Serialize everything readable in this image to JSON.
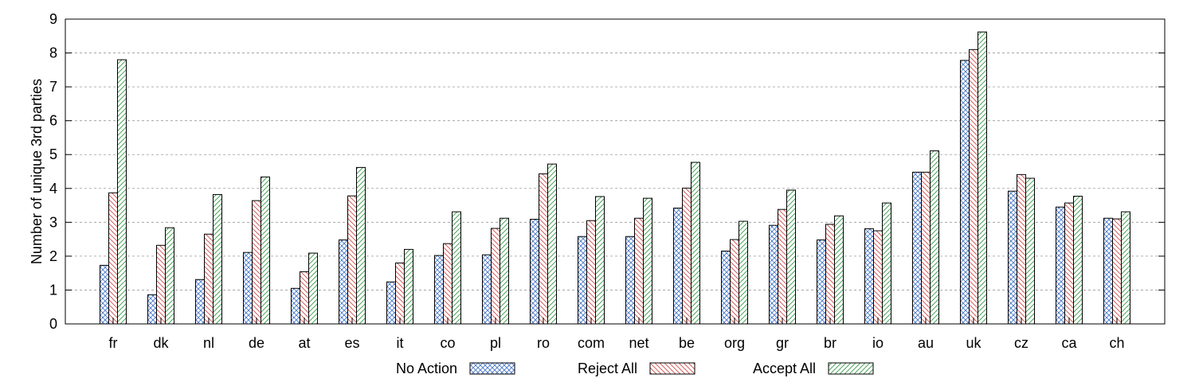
{
  "chart_data": {
    "type": "bar",
    "title": "",
    "xlabel": "",
    "ylabel": "Number of unique 3rd parties",
    "ylim": [
      0,
      9
    ],
    "yticks": [
      0,
      1,
      2,
      3,
      4,
      5,
      6,
      7,
      8,
      9
    ],
    "grid": "horizontal dashed",
    "legend_position": "bottom",
    "categories": [
      "fr",
      "dk",
      "nl",
      "de",
      "at",
      "es",
      "it",
      "co",
      "pl",
      "ro",
      "com",
      "net",
      "be",
      "org",
      "gr",
      "br",
      "io",
      "au",
      "uk",
      "cz",
      "ca",
      "ch"
    ],
    "series": [
      {
        "name": "No Action",
        "color": "#4a78c8",
        "pattern": "crosshatch",
        "values": [
          1.73,
          0.86,
          1.31,
          2.11,
          1.05,
          2.48,
          1.24,
          2.02,
          2.04,
          3.09,
          2.58,
          2.58,
          3.42,
          2.15,
          2.91,
          2.48,
          2.81,
          4.48,
          7.78,
          3.92,
          3.45,
          3.12
        ]
      },
      {
        "name": "Reject All",
        "color": "#d44a4a",
        "pattern": "diagonal-back",
        "values": [
          3.87,
          2.32,
          2.65,
          3.64,
          1.54,
          3.78,
          1.8,
          2.37,
          2.82,
          4.43,
          3.05,
          3.12,
          4.01,
          2.49,
          3.38,
          2.94,
          2.75,
          4.48,
          8.1,
          4.41,
          3.57,
          3.1
        ]
      },
      {
        "name": "Accept All",
        "color": "#3a9a4a",
        "pattern": "diagonal-forward",
        "values": [
          7.8,
          2.84,
          3.82,
          4.34,
          2.09,
          4.62,
          2.2,
          3.31,
          3.12,
          4.72,
          3.76,
          3.71,
          4.77,
          3.03,
          3.95,
          3.19,
          3.57,
          5.11,
          8.62,
          4.3,
          3.77,
          3.31
        ]
      }
    ]
  }
}
